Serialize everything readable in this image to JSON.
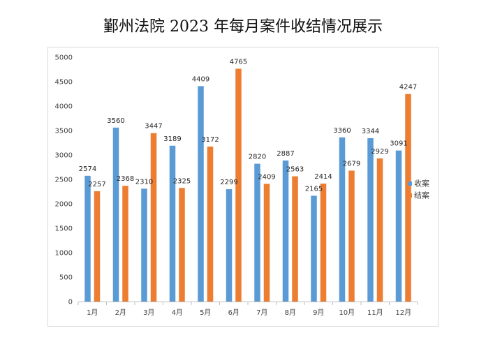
{
  "chart_data": {
    "type": "bar",
    "title": "鄞州法院 2023 年每月案件收结情况展示",
    "categories": [
      "1月",
      "2月",
      "3月",
      "4月",
      "5月",
      "6月",
      "7月",
      "8月",
      "9月",
      "10月",
      "11月",
      "12月"
    ],
    "series": [
      {
        "name": "收案",
        "color": "#5b9bd5",
        "values": [
          2574,
          3560,
          2310,
          3189,
          4409,
          2299,
          2820,
          2887,
          2165,
          3360,
          3344,
          3091
        ]
      },
      {
        "name": "结案",
        "color": "#ed7d31",
        "values": [
          2257,
          2368,
          3447,
          2325,
          3172,
          4765,
          2409,
          2563,
          2414,
          2679,
          2929,
          4247
        ]
      }
    ],
    "ylim": [
      0,
      5000
    ],
    "yticks": [
      0,
      500,
      1000,
      1500,
      2000,
      2500,
      3000,
      3500,
      4000,
      4500,
      5000
    ],
    "grid": false,
    "legend": "right"
  }
}
